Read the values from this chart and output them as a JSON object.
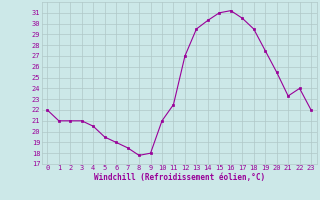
{
  "hours": [
    0,
    1,
    2,
    3,
    4,
    5,
    6,
    7,
    8,
    9,
    10,
    11,
    12,
    13,
    14,
    15,
    16,
    17,
    18,
    19,
    20,
    21,
    22,
    23
  ],
  "values": [
    22.0,
    21.0,
    21.0,
    21.0,
    20.5,
    19.5,
    19.0,
    18.5,
    17.8,
    18.0,
    21.0,
    22.5,
    27.0,
    29.5,
    30.3,
    31.0,
    31.2,
    30.5,
    29.5,
    27.5,
    25.5,
    23.3,
    24.0,
    22.0
  ],
  "xlabel": "Windchill (Refroidissement éolien,°C)",
  "ylim": [
    17,
    32
  ],
  "xlim": [
    -0.5,
    23.5
  ],
  "yticks": [
    17,
    18,
    19,
    20,
    21,
    22,
    23,
    24,
    25,
    26,
    27,
    28,
    29,
    30,
    31
  ],
  "xticks": [
    0,
    1,
    2,
    3,
    4,
    5,
    6,
    7,
    8,
    9,
    10,
    11,
    12,
    13,
    14,
    15,
    16,
    17,
    18,
    19,
    20,
    21,
    22,
    23
  ],
  "line_color": "#990099",
  "marker": "s",
  "marker_size": 2.0,
  "bg_color": "#cce8e8",
  "grid_color": "#b0c8c8",
  "xlabel_color": "#990099",
  "tick_color": "#990099",
  "tick_fontsize": 5.0,
  "xlabel_fontsize": 5.5
}
